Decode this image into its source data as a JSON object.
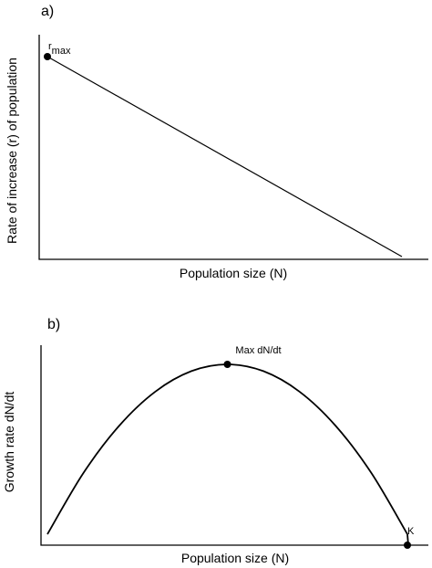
{
  "chart_data": [
    {
      "panel": "a)",
      "type": "line",
      "xlabel": "Population size (N)",
      "ylabel": "Rate of increase (r) of population",
      "ticks": "none",
      "x": [
        0,
        1
      ],
      "y": [
        1,
        0
      ],
      "xlim": [
        0,
        1
      ],
      "ylim": [
        0,
        1
      ],
      "annotations": [
        {
          "label": "r",
          "subscript": "max",
          "x": 0,
          "y": 1,
          "marker": "dot"
        }
      ]
    },
    {
      "panel": "b)",
      "type": "line",
      "xlabel": "Population size (N)",
      "ylabel": "Growth rate dN/dt",
      "ticks": "none",
      "x": [
        0,
        0.1,
        0.2,
        0.3,
        0.4,
        0.5,
        0.6,
        0.7,
        0.8,
        0.9,
        1
      ],
      "y": [
        0,
        0.36,
        0.64,
        0.84,
        0.96,
        1,
        0.96,
        0.84,
        0.64,
        0.36,
        0
      ],
      "xlim": [
        0,
        1
      ],
      "ylim": [
        0,
        1
      ],
      "annotations": [
        {
          "label": "Max dN/dt",
          "x": 0.5,
          "y": 1,
          "marker": "dot"
        },
        {
          "label": "K",
          "x": 1,
          "y": 0,
          "marker": "dot"
        }
      ]
    }
  ]
}
